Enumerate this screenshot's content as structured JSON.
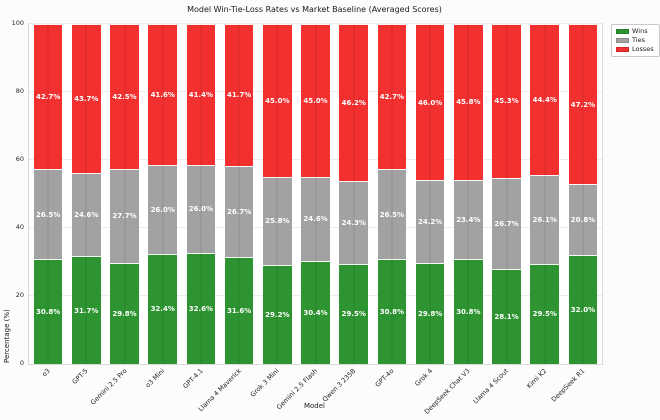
{
  "chart_data": {
    "type": "bar",
    "stacked": true,
    "title": "Model Win-Tie-Loss Rates vs Market Baseline (Averaged Scores)",
    "xlabel": "Model",
    "ylabel": "Percentage (%)",
    "ylim": [
      0,
      100
    ],
    "yticks": [
      0,
      20,
      40,
      60,
      80,
      100
    ],
    "grid": true,
    "legend_position": "outside-top-right",
    "value_label_suffix": "%",
    "categories": [
      "o3",
      "GPT-5",
      "Gemini 2.5 Pro",
      "o3 Mini",
      "GPT-4.1",
      "Llama 4 Maverick",
      "Grok 3 Mini",
      "Gemini 2.5 Flash",
      "Qwen 3 235B",
      "GPT-4o",
      "Grok 4",
      "DeepSeek Chat V3",
      "Llama 4 Scout",
      "Kimi K2",
      "DeepSeek R1"
    ],
    "series": [
      {
        "name": "Wins",
        "color": "#2e9431",
        "values": [
          30.8,
          31.7,
          29.8,
          32.4,
          32.6,
          31.6,
          29.2,
          30.4,
          29.5,
          30.8,
          29.8,
          30.8,
          28.1,
          29.5,
          32.0
        ]
      },
      {
        "name": "Ties",
        "color": "#a2a2a2",
        "values": [
          26.5,
          24.6,
          27.7,
          26.0,
          26.0,
          26.7,
          25.8,
          24.6,
          24.3,
          26.5,
          24.2,
          23.4,
          26.7,
          26.1,
          20.8
        ]
      },
      {
        "name": "Losses",
        "color": "#f23030",
        "values": [
          42.7,
          43.7,
          42.5,
          41.6,
          41.4,
          41.7,
          45.0,
          45.0,
          46.2,
          42.7,
          46.0,
          45.8,
          45.3,
          44.4,
          47.2
        ]
      }
    ]
  }
}
